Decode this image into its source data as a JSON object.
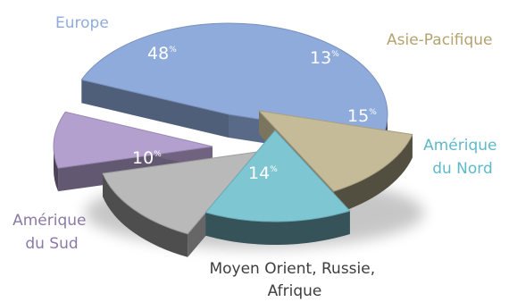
{
  "chart_data": {
    "type": "pie",
    "unit": "%",
    "slices": [
      {
        "name": "Europe",
        "value": 48,
        "color": "#8fabdc",
        "label_color": "#8fabdc"
      },
      {
        "name": "Asie-Pacifique",
        "value": 13,
        "color": "#c6bb98",
        "label_color": "#b5a271"
      },
      {
        "name": "Amérique du Nord",
        "value": 15,
        "color": "#7fc6d3",
        "label_color": "#5fb9c8"
      },
      {
        "name": "Moyen Orient, Russie, Afrique",
        "value": 14,
        "color": "#b9b9b9",
        "label_color": "#3d3d3d"
      },
      {
        "name": "Amérique du Sud",
        "value": 10,
        "color": "#b4a0cf",
        "label_color": "#8a7aa6"
      }
    ]
  }
}
